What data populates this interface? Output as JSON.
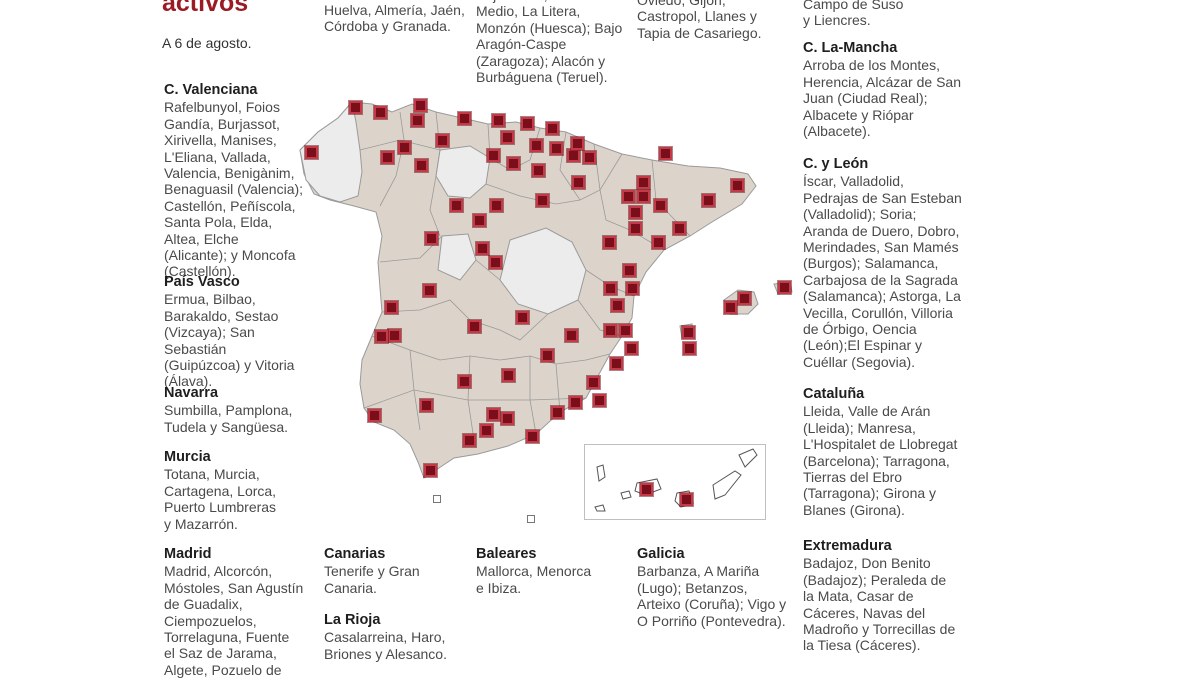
{
  "header": {
    "title_fragment": "activos",
    "date": "A 6 de agosto."
  },
  "colors": {
    "accent": "#9b1b24",
    "land": "#dcd4cb",
    "land_light": "#ececec",
    "marker": "#7a0e1b"
  },
  "regions": {
    "andalucia_tail": {
      "text": "Huelva, Almería, Jaén, Córdoba y Granada."
    },
    "aragon_tail": {
      "text": "Bajo Cinca; Cinca Medio, La Litera, Monzón (Huesca); Bajo Aragón-Caspe (Zaragoza); Alacón y Burbáguena (Teruel)."
    },
    "asturias_tail": {
      "text": "Oviedo, Gijón, Castropol, Llanes y Tapia de Casariego."
    },
    "cantabria_tail": {
      "text": "Campo de Suso y Liencres."
    },
    "valenciana": {
      "name": "C. Valenciana",
      "text": "Rafelbunyol, Foios Gandía, Burjassot, Xirivella, Manises, L'Eliana, Vallada, Valencia, Benigànim, Benaguasil (Valencia); Castellón, Peñíscola, Santa Pola, Elda, Altea, Elche (Alicante); y Moncofa (Castellón)."
    },
    "pais_vasco": {
      "name": "País Vasco",
      "text": "Ermua, Bilbao, Barakaldo, Sestao (Vizcaya); San Sebastián (Guipúzcoa) y Vitoria (Álava)."
    },
    "navarra": {
      "name": "Navarra",
      "text": "Sumbilla, Pamplona, Tudela y Sangüesa."
    },
    "murcia": {
      "name": "Murcia",
      "text": "Totana, Murcia, Cartagena, Lorca, Puerto Lumbreras y Mazarrón."
    },
    "madrid": {
      "name": "Madrid",
      "text": "Madrid, Alcorcón, Móstoles, San Agustín de Guadalix, Ciempozuelos, Torrelaguna, Fuente el Saz de Jarama, Algete, Pozuelo de"
    },
    "canarias": {
      "name": "Canarias",
      "text": "Tenerife y Gran Canaria."
    },
    "la_rioja": {
      "name": "La Rioja",
      "text": "Casalarreina, Haro, Briones y Alesanco."
    },
    "baleares": {
      "name": "Baleares",
      "text": "Mallorca, Menorca e Ibiza."
    },
    "galicia": {
      "name": "Galicia",
      "text": "Barbanza, A Mariña (Lugo); Betanzos, Arteixo (Coruña); Vigo y O Porriño (Pontevedra)."
    },
    "castilla_la_mancha": {
      "name": "C. La-Mancha",
      "text": "Arroba de los Montes, Herencia, Alcázar de San Juan (Ciudad Real); Albacete y Riópar (Albacete)."
    },
    "castilla_leon": {
      "name": "C. y León",
      "text": "Íscar, Valladolid, Pedrajas de San Esteban (Valladolid); Soria; Aranda de Duero, Dobro, Merindades, San Mamés (Burgos); Salamanca, Carbajosa de la Sagrada (Salamanca); Astorga, La Vecilla, Corullón, Villoria de Órbigo, Oencia (León);El Espinar y Cuéllar (Segovia)."
    },
    "cataluna": {
      "name": "Cataluña",
      "text": "Lleida, Valle de Arán (Lleida); Manresa, L'Hospitalet de Llobregat (Barcelona); Tarragona, Tierras del Ebro (Tarragona); Girona y Blanes (Girona)."
    },
    "extremadura": {
      "name": "Extremadura",
      "text": "Badajoz, Don Benito (Badajoz); Peraleda de la Mata, Casar de Cáceres, Navas del Madroño y Torrecillas de la Tiesa (Cáceres)."
    }
  },
  "map": {
    "marker_icon": "outbreak-square-marker",
    "marker_count": 78
  }
}
